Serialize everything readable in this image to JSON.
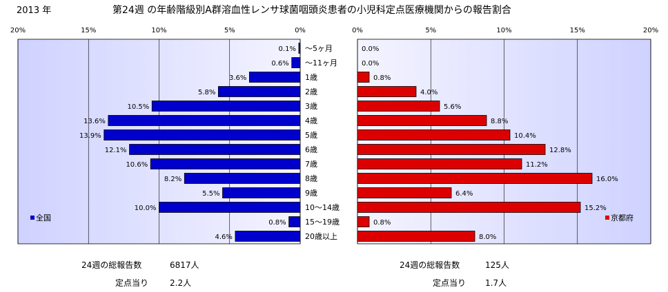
{
  "year_label": "2013 年",
  "title": "第24週 の年齢階級別A群溶血性レンサ球菌咽頭炎患者の小児科定点医療機関からの報告割合",
  "colors": {
    "plot_bg_left": "#cfd2ff",
    "plot_bg_right": "#f4f4ff",
    "national_bar": "#0000cc",
    "kyoto_bar": "#dd0000"
  },
  "chart_data": [
    {
      "type": "bar",
      "orientation": "horizontal",
      "direction": "reversed",
      "categories": [
        "〜5ヶ月",
        "〜11ヶ月",
        "1歳",
        "2歳",
        "3歳",
        "4歳",
        "5歳",
        "6歳",
        "7歳",
        "8歳",
        "9歳",
        "10〜14歳",
        "15〜19歳",
        "20歳以上"
      ],
      "series": [
        {
          "name": "全国",
          "values": [
            0.1,
            0.6,
            3.6,
            5.8,
            10.5,
            13.6,
            13.9,
            12.1,
            10.6,
            8.2,
            5.5,
            10.0,
            0.8,
            4.6
          ],
          "labels": [
            "0.1%",
            "0.6%",
            "3.6%",
            "5.8%",
            "10.5%",
            "13.6%",
            "13.9%",
            "12.1%",
            "10.6%",
            "8.2%",
            "5.5%",
            "10.0%",
            "0.8%",
            "4.6%"
          ]
        }
      ],
      "xlim": [
        0,
        20
      ],
      "xticks": [
        20,
        15,
        10,
        5,
        0
      ],
      "xtick_labels": [
        "20%",
        "15%",
        "10%",
        "5%",
        "0%"
      ],
      "legend_position": "bottom-left"
    },
    {
      "type": "bar",
      "orientation": "horizontal",
      "categories": [
        "〜5ヶ月",
        "〜11ヶ月",
        "1歳",
        "2歳",
        "3歳",
        "4歳",
        "5歳",
        "6歳",
        "7歳",
        "8歳",
        "9歳",
        "10〜14歳",
        "15〜19歳",
        "20歳以上"
      ],
      "series": [
        {
          "name": "京都府",
          "values": [
            0.0,
            0.0,
            0.8,
            4.0,
            5.6,
            8.8,
            10.4,
            12.8,
            11.2,
            16.0,
            6.4,
            15.2,
            0.8,
            8.0
          ],
          "labels": [
            "0.0%",
            "0.0%",
            "0.8%",
            "4.0%",
            "5.6%",
            "8.8%",
            "10.4%",
            "12.8%",
            "11.2%",
            "16.0%",
            "6.4%",
            "15.2%",
            "0.8%",
            "8.0%"
          ]
        }
      ],
      "xlim": [
        0,
        20
      ],
      "xticks": [
        0,
        5,
        10,
        15,
        20
      ],
      "xtick_labels": [
        "0%",
        "5%",
        "10%",
        "15%",
        "20%"
      ],
      "legend_position": "bottom-right"
    }
  ],
  "footer": {
    "left": {
      "total_label": "24週の総報告数",
      "total_value": "6817人",
      "per_label": "定点当り",
      "per_value": "2.2人"
    },
    "right": {
      "total_label": "24週の総報告数",
      "total_value": "125人",
      "per_label": "定点当り",
      "per_value": "1.7人"
    }
  }
}
